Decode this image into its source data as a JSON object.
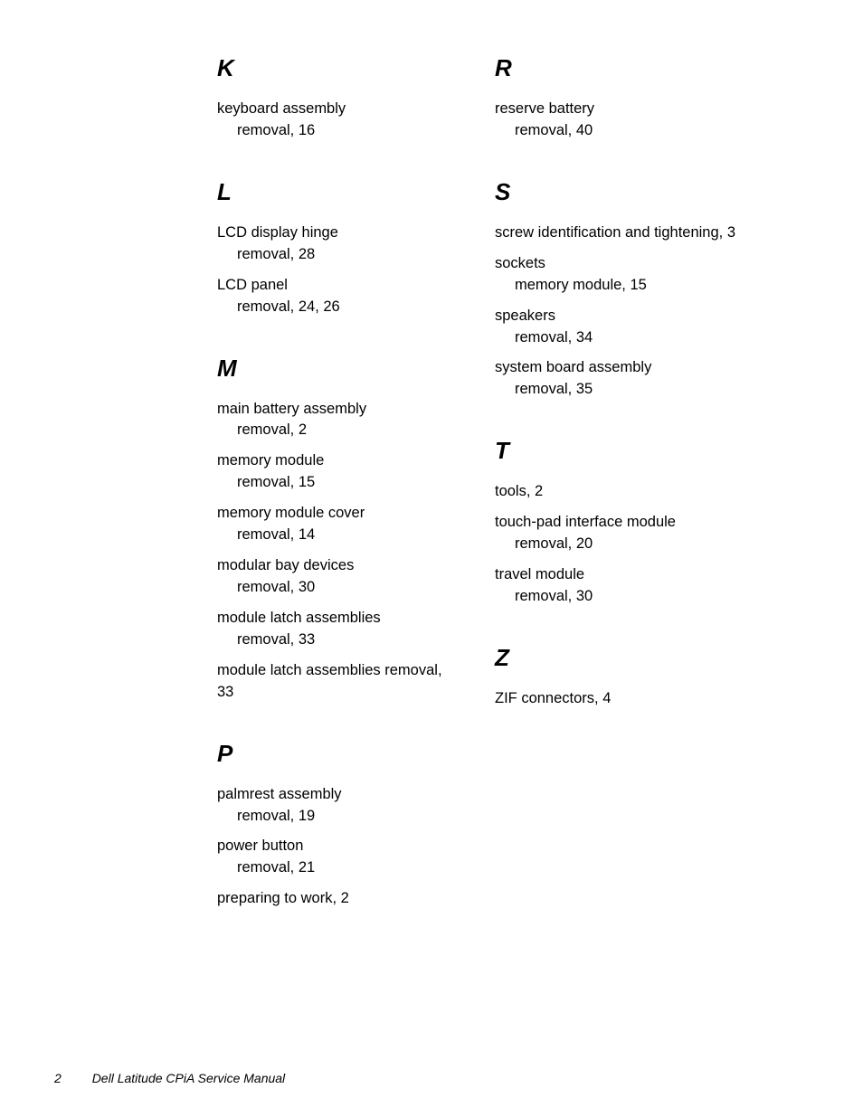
{
  "footer": {
    "page_number": "2",
    "title": "Dell Latitude CPiA Service Manual"
  },
  "left_column": [
    {
      "letter": "K",
      "entries": [
        {
          "term": "keyboard assembly",
          "subs": [
            {
              "text": "removal, 16"
            }
          ]
        }
      ]
    },
    {
      "letter": "L",
      "entries": [
        {
          "term": "LCD display hinge",
          "subs": [
            {
              "text": "removal, 28"
            }
          ]
        },
        {
          "term": "LCD panel",
          "subs": [
            {
              "text": "removal, 24, 26"
            }
          ]
        }
      ]
    },
    {
      "letter": "M",
      "entries": [
        {
          "term": "main battery assembly",
          "subs": [
            {
              "text": "removal, 2"
            }
          ]
        },
        {
          "term": "memory module",
          "subs": [
            {
              "text": "removal, 15"
            }
          ]
        },
        {
          "term": "memory module cover",
          "subs": [
            {
              "text": "removal, 14"
            }
          ]
        },
        {
          "term": "modular bay devices",
          "subs": [
            {
              "text": "removal, 30"
            }
          ]
        },
        {
          "term": "module latch assemblies",
          "subs": [
            {
              "text": "removal, 33"
            }
          ]
        },
        {
          "term": "module latch assemblies removal, 33",
          "subs": []
        }
      ]
    },
    {
      "letter": "P",
      "entries": [
        {
          "term": "palmrest assembly",
          "subs": [
            {
              "text": "removal, 19"
            }
          ]
        },
        {
          "term": "power button",
          "subs": [
            {
              "text": "removal, 21"
            }
          ]
        },
        {
          "term": "preparing to work, 2",
          "subs": []
        }
      ]
    }
  ],
  "right_column": [
    {
      "letter": "R",
      "entries": [
        {
          "term": "reserve battery",
          "subs": [
            {
              "text": "removal, 40"
            }
          ]
        }
      ]
    },
    {
      "letter": "S",
      "entries": [
        {
          "term": "screw identification and tightening, 3",
          "subs": []
        },
        {
          "term": "sockets",
          "subs": [
            {
              "text": "memory module, 15"
            }
          ]
        },
        {
          "term": "speakers",
          "subs": [
            {
              "text": "removal, 34"
            }
          ]
        },
        {
          "term": "system board assembly",
          "subs": [
            {
              "text": "removal, 35"
            }
          ]
        }
      ]
    },
    {
      "letter": "T",
      "entries": [
        {
          "term": "tools, 2",
          "subs": []
        },
        {
          "term": "touch-pad interface module",
          "subs": [
            {
              "text": "removal, 20"
            }
          ]
        },
        {
          "term": "travel module",
          "subs": [
            {
              "text": "removal, 30"
            }
          ]
        }
      ]
    },
    {
      "letter": "Z",
      "entries": [
        {
          "term": "ZIF connectors, 4",
          "subs": []
        }
      ]
    }
  ]
}
